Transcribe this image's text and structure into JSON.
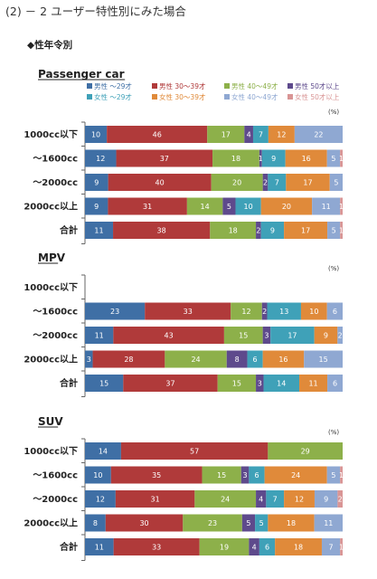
{
  "header": {
    "title": "(2) － 2 ユーザー特性別にみた場合",
    "subtitle": "◆性年令別"
  },
  "colors": {
    "male_u29": "#3f6fa5",
    "male_30_39": "#b03a3a",
    "male_40_49": "#8db04a",
    "male_50plus": "#5e4a8c",
    "female_u29": "#3fa1b8",
    "female_30_39": "#e08a3a",
    "female_40_49": "#8fa8d2",
    "female_50plus": "#d99595"
  },
  "legend": [
    {
      "key": "male_u29",
      "label": "男性 ～29才"
    },
    {
      "key": "male_30_39",
      "label": "男性 30～39才"
    },
    {
      "key": "male_40_49",
      "label": "男性 40～49才"
    },
    {
      "key": "male_50plus",
      "label": "男性 50才以上"
    },
    {
      "key": "female_u29",
      "label": "女性 ～29才"
    },
    {
      "key": "female_30_39",
      "label": "女性 30～39才"
    },
    {
      "key": "female_40_49",
      "label": "女性 40～49才"
    },
    {
      "key": "female_50plus",
      "label": "女性 50才以上"
    }
  ],
  "chart_data": [
    {
      "type": "bar",
      "stacked": "percent",
      "orientation": "horizontal",
      "title": "Passenger car",
      "unit": "(%)",
      "categories": [
        "1000cc以下",
        "～1600cc",
        "～2000cc",
        "2000cc以上",
        "合計"
      ],
      "series": [
        {
          "name": "男性 ～29才",
          "values": [
            10,
            12,
            9,
            9,
            11
          ]
        },
        {
          "name": "男性 30～39才",
          "values": [
            46,
            37,
            40,
            31,
            38
          ]
        },
        {
          "name": "男性 40～49才",
          "values": [
            17,
            18,
            20,
            14,
            18
          ]
        },
        {
          "name": "男性 50才以上",
          "values": [
            4,
            1,
            2,
            5,
            2
          ]
        },
        {
          "name": "女性 ～29才",
          "values": [
            7,
            9,
            7,
            10,
            9
          ]
        },
        {
          "name": "女性 30～39才",
          "values": [
            12,
            16,
            17,
            20,
            17
          ]
        },
        {
          "name": "女性 40～49才",
          "values": [
            22,
            5,
            5,
            11,
            5
          ]
        },
        {
          "name": "女性 50才以上",
          "values": [
            0,
            1,
            0,
            1,
            1
          ]
        }
      ]
    },
    {
      "type": "bar",
      "stacked": "percent",
      "orientation": "horizontal",
      "title": "MPV",
      "unit": "(%)",
      "categories": [
        "1000cc以下",
        "～1600cc",
        "～2000cc",
        "2000cc以上",
        "合計"
      ],
      "series": [
        {
          "name": "男性 ～29才",
          "values": [
            0,
            23,
            11,
            3,
            15
          ]
        },
        {
          "name": "男性 30～39才",
          "values": [
            0,
            33,
            43,
            28,
            37
          ]
        },
        {
          "name": "男性 40～49才",
          "values": [
            0,
            12,
            15,
            24,
            15
          ]
        },
        {
          "name": "男性 50才以上",
          "values": [
            0,
            2,
            3,
            8,
            3
          ]
        },
        {
          "name": "女性 ～29才",
          "values": [
            0,
            13,
            17,
            6,
            14
          ]
        },
        {
          "name": "女性 30～39才",
          "values": [
            0,
            10,
            9,
            16,
            11
          ]
        },
        {
          "name": "女性 40～49才",
          "values": [
            0,
            6,
            2,
            15,
            6
          ]
        },
        {
          "name": "女性 50才以上",
          "values": [
            0,
            0,
            0,
            0,
            0
          ]
        }
      ]
    },
    {
      "type": "bar",
      "stacked": "percent",
      "orientation": "horizontal",
      "title": "SUV",
      "unit": "(%)",
      "categories": [
        "1000cc以下",
        "～1600cc",
        "～2000cc",
        "2000cc以上",
        "合計"
      ],
      "series": [
        {
          "name": "男性 ～29才",
          "values": [
            14,
            10,
            12,
            8,
            11
          ]
        },
        {
          "name": "男性 30～39才",
          "values": [
            57,
            35,
            31,
            30,
            33
          ]
        },
        {
          "name": "男性 40～49才",
          "values": [
            29,
            15,
            24,
            23,
            19
          ]
        },
        {
          "name": "男性 50才以上",
          "values": [
            0,
            3,
            4,
            5,
            4
          ]
        },
        {
          "name": "女性 ～29才",
          "values": [
            0,
            6,
            7,
            5,
            6
          ]
        },
        {
          "name": "女性 30～39才",
          "values": [
            0,
            24,
            12,
            18,
            18
          ]
        },
        {
          "name": "女性 40～49才",
          "values": [
            0,
            5,
            9,
            11,
            7
          ]
        },
        {
          "name": "女性 50才以上",
          "values": [
            0,
            1,
            2,
            0,
            1
          ]
        }
      ]
    }
  ]
}
